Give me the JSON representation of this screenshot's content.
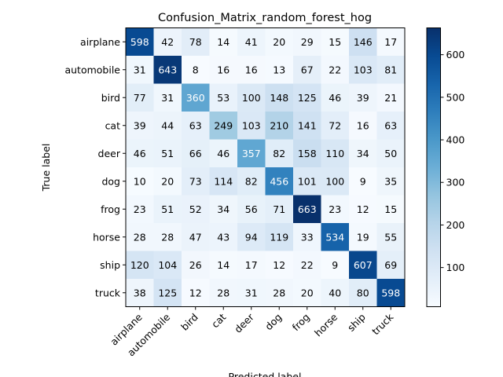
{
  "chart_data": {
    "type": "heatmap",
    "title": "Confusion_Matrix_random_forest_hog",
    "xlabel": "Predicted label",
    "ylabel": "True label",
    "x_categories": [
      "airplane",
      "automobile",
      "bird",
      "cat",
      "deer",
      "dog",
      "frog",
      "horse",
      "ship",
      "truck"
    ],
    "y_categories": [
      "airplane",
      "automobile",
      "bird",
      "cat",
      "deer",
      "dog",
      "frog",
      "horse",
      "ship",
      "truck"
    ],
    "values": [
      [
        598,
        42,
        78,
        14,
        41,
        20,
        29,
        15,
        146,
        17
      ],
      [
        31,
        643,
        8,
        16,
        16,
        13,
        67,
        22,
        103,
        81
      ],
      [
        77,
        31,
        360,
        53,
        100,
        148,
        125,
        46,
        39,
        21
      ],
      [
        39,
        44,
        63,
        249,
        103,
        210,
        141,
        72,
        16,
        63
      ],
      [
        46,
        51,
        66,
        46,
        357,
        82,
        158,
        110,
        34,
        50
      ],
      [
        10,
        20,
        73,
        114,
        82,
        456,
        101,
        100,
        9,
        35
      ],
      [
        23,
        51,
        52,
        34,
        56,
        71,
        663,
        23,
        12,
        15
      ],
      [
        28,
        28,
        47,
        43,
        94,
        119,
        33,
        534,
        19,
        55
      ],
      [
        120,
        104,
        26,
        14,
        17,
        12,
        22,
        9,
        607,
        69
      ],
      [
        38,
        125,
        12,
        28,
        31,
        28,
        20,
        40,
        80,
        598
      ]
    ],
    "colormap": "Blues",
    "color_range": [
      8,
      663
    ],
    "colorbar_ticks": [
      100,
      200,
      300,
      400,
      500,
      600
    ],
    "grid": false
  }
}
